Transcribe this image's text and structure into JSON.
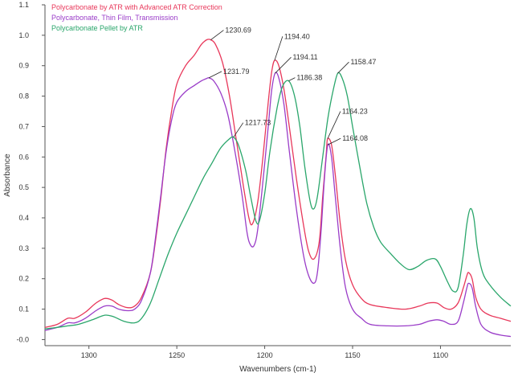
{
  "chart_data": {
    "type": "line",
    "xlabel": "Wavenumbers (cm-1)",
    "ylabel": "Absorbance",
    "xlim": [
      1325,
      1060
    ],
    "ylim": [
      -0.02,
      1.1
    ],
    "x_ticks": [
      1300,
      1250,
      1200,
      1150,
      1100
    ],
    "y_ticks": [
      -0.0,
      0.1,
      0.2,
      0.3,
      0.4,
      0.5,
      0.6,
      0.7,
      0.8,
      0.9,
      1.0,
      1.1
    ],
    "y_tick_labels": [
      "-0.0",
      "0.1",
      "0.2",
      "0.3",
      "0.4",
      "0.5",
      "0.6",
      "0.7",
      "0.8",
      "0.9",
      "1.0",
      "1.1"
    ],
    "series": [
      {
        "name": "Polycarbonate by ATR with Advanced ATR Correction",
        "color": "#e8375a",
        "points": [
          [
            1325,
            0.04
          ],
          [
            1318,
            0.05
          ],
          [
            1312,
            0.07
          ],
          [
            1308,
            0.07
          ],
          [
            1302,
            0.09
          ],
          [
            1296,
            0.12
          ],
          [
            1291,
            0.135
          ],
          [
            1287,
            0.13
          ],
          [
            1283,
            0.115
          ],
          [
            1278,
            0.105
          ],
          [
            1274,
            0.11
          ],
          [
            1270,
            0.14
          ],
          [
            1265,
            0.22
          ],
          [
            1262,
            0.33
          ],
          [
            1259,
            0.47
          ],
          [
            1256,
            0.63
          ],
          [
            1253,
            0.75
          ],
          [
            1250,
            0.84
          ],
          [
            1245,
            0.9
          ],
          [
            1240,
            0.935
          ],
          [
            1236,
            0.97
          ],
          [
            1233,
            0.985
          ],
          [
            1230.69,
            0.985
          ],
          [
            1228,
            0.97
          ],
          [
            1224,
            0.91
          ],
          [
            1220,
            0.8
          ],
          [
            1216,
            0.65
          ],
          [
            1212,
            0.5
          ],
          [
            1209,
            0.4
          ],
          [
            1207,
            0.38
          ],
          [
            1204,
            0.45
          ],
          [
            1201,
            0.6
          ],
          [
            1198,
            0.78
          ],
          [
            1196,
            0.88
          ],
          [
            1194.4,
            0.917
          ],
          [
            1192,
            0.9
          ],
          [
            1189,
            0.82
          ],
          [
            1186,
            0.7
          ],
          [
            1182,
            0.53
          ],
          [
            1178,
            0.38
          ],
          [
            1175,
            0.29
          ],
          [
            1172,
            0.265
          ],
          [
            1169,
            0.32
          ],
          [
            1167,
            0.47
          ],
          [
            1165,
            0.61
          ],
          [
            1164.23,
            0.66
          ],
          [
            1162,
            0.64
          ],
          [
            1160,
            0.55
          ],
          [
            1157,
            0.38
          ],
          [
            1154,
            0.26
          ],
          [
            1150,
            0.18
          ],
          [
            1145,
            0.135
          ],
          [
            1140,
            0.115
          ],
          [
            1130,
            0.105
          ],
          [
            1120,
            0.1
          ],
          [
            1112,
            0.11
          ],
          [
            1107,
            0.12
          ],
          [
            1102,
            0.12
          ],
          [
            1098,
            0.105
          ],
          [
            1094,
            0.1
          ],
          [
            1090,
            0.12
          ],
          [
            1087,
            0.17
          ],
          [
            1085,
            0.21
          ],
          [
            1084,
            0.22
          ],
          [
            1082,
            0.2
          ],
          [
            1080,
            0.14
          ],
          [
            1077,
            0.1
          ],
          [
            1072,
            0.08
          ],
          [
            1066,
            0.07
          ],
          [
            1060,
            0.06
          ]
        ]
      },
      {
        "name": "Polycarbonate, Thin Film, Transmission",
        "color": "#9a3cc8",
        "points": [
          [
            1325,
            0.03
          ],
          [
            1318,
            0.04
          ],
          [
            1312,
            0.055
          ],
          [
            1308,
            0.055
          ],
          [
            1302,
            0.07
          ],
          [
            1296,
            0.095
          ],
          [
            1291,
            0.11
          ],
          [
            1287,
            0.11
          ],
          [
            1283,
            0.1
          ],
          [
            1278,
            0.095
          ],
          [
            1274,
            0.1
          ],
          [
            1270,
            0.13
          ],
          [
            1265,
            0.22
          ],
          [
            1262,
            0.34
          ],
          [
            1259,
            0.48
          ],
          [
            1256,
            0.62
          ],
          [
            1253,
            0.72
          ],
          [
            1250,
            0.78
          ],
          [
            1245,
            0.815
          ],
          [
            1240,
            0.835
          ],
          [
            1236,
            0.85
          ],
          [
            1233,
            0.858
          ],
          [
            1231.79,
            0.86
          ],
          [
            1229,
            0.85
          ],
          [
            1225,
            0.81
          ],
          [
            1221,
            0.74
          ],
          [
            1217,
            0.62
          ],
          [
            1213,
            0.48
          ],
          [
            1210,
            0.35
          ],
          [
            1208,
            0.31
          ],
          [
            1206,
            0.31
          ],
          [
            1204,
            0.36
          ],
          [
            1201,
            0.52
          ],
          [
            1198,
            0.7
          ],
          [
            1196,
            0.82
          ],
          [
            1194.11,
            0.875
          ],
          [
            1192,
            0.86
          ],
          [
            1189,
            0.77
          ],
          [
            1186,
            0.62
          ],
          [
            1182,
            0.43
          ],
          [
            1178,
            0.28
          ],
          [
            1175,
            0.21
          ],
          [
            1172,
            0.185
          ],
          [
            1170,
            0.22
          ],
          [
            1168,
            0.35
          ],
          [
            1166,
            0.53
          ],
          [
            1164.08,
            0.64
          ],
          [
            1162,
            0.6
          ],
          [
            1160,
            0.48
          ],
          [
            1157,
            0.3
          ],
          [
            1154,
            0.17
          ],
          [
            1150,
            0.1
          ],
          [
            1145,
            0.07
          ],
          [
            1140,
            0.05
          ],
          [
            1130,
            0.045
          ],
          [
            1120,
            0.045
          ],
          [
            1112,
            0.05
          ],
          [
            1107,
            0.06
          ],
          [
            1102,
            0.065
          ],
          [
            1098,
            0.06
          ],
          [
            1094,
            0.05
          ],
          [
            1090,
            0.06
          ],
          [
            1087,
            0.12
          ],
          [
            1085,
            0.17
          ],
          [
            1084,
            0.185
          ],
          [
            1082,
            0.17
          ],
          [
            1080,
            0.11
          ],
          [
            1077,
            0.05
          ],
          [
            1072,
            0.025
          ],
          [
            1066,
            0.015
          ],
          [
            1060,
            0.01
          ]
        ]
      },
      {
        "name": "Polycarbonate Pellet by ATR",
        "color": "#2aa66b",
        "points": [
          [
            1325,
            0.035
          ],
          [
            1318,
            0.04
          ],
          [
            1312,
            0.045
          ],
          [
            1306,
            0.05
          ],
          [
            1298,
            0.065
          ],
          [
            1291,
            0.08
          ],
          [
            1286,
            0.075
          ],
          [
            1280,
            0.06
          ],
          [
            1274,
            0.055
          ],
          [
            1270,
            0.07
          ],
          [
            1265,
            0.12
          ],
          [
            1260,
            0.2
          ],
          [
            1255,
            0.28
          ],
          [
            1250,
            0.35
          ],
          [
            1245,
            0.41
          ],
          [
            1240,
            0.47
          ],
          [
            1235,
            0.53
          ],
          [
            1230,
            0.58
          ],
          [
            1225,
            0.63
          ],
          [
            1220,
            0.66
          ],
          [
            1217.73,
            0.665
          ],
          [
            1215,
            0.64
          ],
          [
            1211,
            0.56
          ],
          [
            1208,
            0.47
          ],
          [
            1205,
            0.39
          ],
          [
            1203,
            0.39
          ],
          [
            1200,
            0.48
          ],
          [
            1197,
            0.62
          ],
          [
            1193,
            0.76
          ],
          [
            1190,
            0.83
          ],
          [
            1186.38,
            0.85
          ],
          [
            1183,
            0.8
          ],
          [
            1180,
            0.7
          ],
          [
            1177,
            0.56
          ],
          [
            1174,
            0.45
          ],
          [
            1172,
            0.43
          ],
          [
            1170,
            0.47
          ],
          [
            1167,
            0.6
          ],
          [
            1164,
            0.73
          ],
          [
            1161,
            0.82
          ],
          [
            1158.47,
            0.875
          ],
          [
            1156,
            0.86
          ],
          [
            1153,
            0.8
          ],
          [
            1150,
            0.7
          ],
          [
            1146,
            0.57
          ],
          [
            1142,
            0.45
          ],
          [
            1138,
            0.37
          ],
          [
            1134,
            0.32
          ],
          [
            1128,
            0.28
          ],
          [
            1123,
            0.25
          ],
          [
            1118,
            0.23
          ],
          [
            1113,
            0.24
          ],
          [
            1108,
            0.26
          ],
          [
            1103,
            0.265
          ],
          [
            1100,
            0.24
          ],
          [
            1096,
            0.19
          ],
          [
            1093,
            0.16
          ],
          [
            1090,
            0.17
          ],
          [
            1087,
            0.28
          ],
          [
            1085,
            0.38
          ],
          [
            1083,
            0.43
          ],
          [
            1081,
            0.4
          ],
          [
            1079,
            0.3
          ],
          [
            1076,
            0.22
          ],
          [
            1072,
            0.18
          ],
          [
            1066,
            0.14
          ],
          [
            1060,
            0.11
          ]
        ]
      }
    ],
    "peak_labels": [
      {
        "text": "1230.69",
        "x": 1230.69,
        "y": 0.985,
        "dx": 16,
        "dy": -12
      },
      {
        "text": "1231.79",
        "x": 1231.79,
        "y": 0.86,
        "dx": 16,
        "dy": -8
      },
      {
        "text": "1194.40",
        "x": 1194.4,
        "y": 0.917,
        "dx": 10,
        "dy": -30
      },
      {
        "text": "1194.11",
        "x": 1194.11,
        "y": 0.875,
        "dx": 20,
        "dy": -20
      },
      {
        "text": "1186.38",
        "x": 1186.38,
        "y": 0.85,
        "dx": 8,
        "dy": -4
      },
      {
        "text": "1158.47",
        "x": 1158.47,
        "y": 0.875,
        "dx": 14,
        "dy": -14
      },
      {
        "text": "1217.73",
        "x": 1217.73,
        "y": 0.665,
        "dx": 12,
        "dy": -18
      },
      {
        "text": "1164.23",
        "x": 1164.23,
        "y": 0.66,
        "dx": 16,
        "dy": -34
      },
      {
        "text": "1164.08",
        "x": 1164.08,
        "y": 0.64,
        "dx": 16,
        "dy": -8
      }
    ],
    "legend_position": "top-left"
  }
}
